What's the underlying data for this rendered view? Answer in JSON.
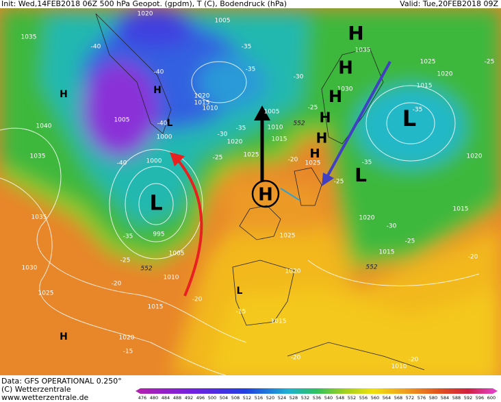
{
  "header": {
    "left": "Init: Wed,14FEB2018 06Z   500 hPa Geopot. (gpdm), T (C), Bodendruck (hPa)",
    "right": "Valid: Tue,20FEB2018 09Z"
  },
  "map": {
    "pressure_labels": [
      "1020",
      "1005",
      "1035",
      "1035",
      "1025",
      "1020",
      "1015",
      "1020",
      "1015",
      "1010",
      "1005",
      "1005",
      "1040",
      "1010",
      "1000",
      "1015",
      "1020",
      "1025",
      "1000",
      "1035",
      "1020",
      "1035",
      "1015",
      "1020",
      "995",
      "1025",
      "1005",
      "1015",
      "1030",
      "1010",
      "1020",
      "1025",
      "1015",
      "1015",
      "1020",
      "1010",
      "1030",
      "1025"
    ],
    "temperature_labels": [
      "-40",
      "-35",
      "-40",
      "-35",
      "-30",
      "-35",
      "-40",
      "-35",
      "-30",
      "-25",
      "-25",
      "-40",
      "-20",
      "-35",
      "-35",
      "-30",
      "-25",
      "-25",
      "-20",
      "-20",
      "-25",
      "-20",
      "-20",
      "-15",
      "-20",
      "-15",
      "-25"
    ],
    "height_labels": [
      "552",
      "552",
      "552"
    ],
    "centers": [
      "H",
      "H",
      "H",
      "H",
      "H",
      "H",
      "H",
      "H",
      "L",
      "L",
      "L",
      "L",
      "H",
      "L",
      "H"
    ]
  },
  "footer": {
    "data": "Data: GFS OPERATIONAL 0.250°",
    "copyright": "(C) Wetterzentrale",
    "url": "www.wetterzentrale.de"
  },
  "colorbar": {
    "ticks": [
      476,
      480,
      484,
      488,
      492,
      496,
      500,
      504,
      508,
      512,
      516,
      520,
      524,
      528,
      532,
      536,
      540,
      548,
      552,
      556,
      560,
      564,
      568,
      572,
      576,
      580,
      584,
      588,
      592,
      596,
      600
    ]
  }
}
